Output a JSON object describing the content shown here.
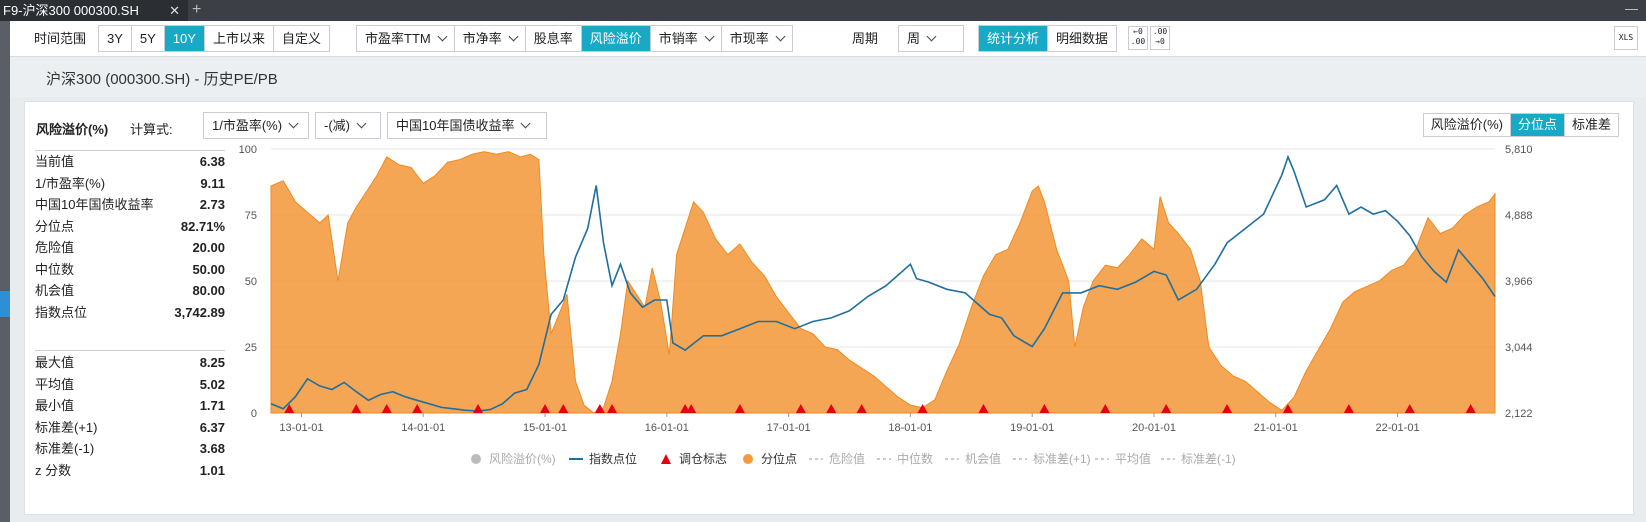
{
  "window": {
    "tab_title": "F9-沪深300 000300.SH",
    "close": "✕",
    "new_tab": "+",
    "minimize": "—"
  },
  "toolbar": {
    "time_label": "时间范围",
    "time_ranges": [
      "3Y",
      "5Y",
      "10Y",
      "上市以来",
      "自定义"
    ],
    "metrics": [
      "市盈率TTM",
      "市净率",
      "股息率",
      "风险溢价",
      "市销率",
      "市现率"
    ],
    "period_label": "周期",
    "period_value": "周",
    "views": [
      "统计分析",
      "明细数据"
    ],
    "decimal_icon_a": "←0\n.00",
    "decimal_icon_b": ".00\n→0",
    "export_icon": "XLS"
  },
  "page_title": "沪深300 (000300.SH) - 历史PE/PB",
  "panel": {
    "title": "风险溢价(%)",
    "formula_label": "计算式:",
    "formula": [
      "1/市盈率(%)",
      "-(减)",
      "中国10年国债收益率"
    ],
    "modes": [
      "风险溢价(%)",
      "分位点",
      "标准差"
    ]
  },
  "stats_top": [
    {
      "label": "当前值",
      "value": "6.38"
    },
    {
      "label": "1/市盈率(%)",
      "value": "9.11"
    },
    {
      "label": "中国10年国债收益率",
      "value": "2.73"
    },
    {
      "label": "分位点",
      "value": "82.71%"
    },
    {
      "label": "危险值",
      "value": "20.00"
    },
    {
      "label": "中位数",
      "value": "50.00"
    },
    {
      "label": "机会值",
      "value": "80.00"
    },
    {
      "label": "指数点位",
      "value": "3,742.89"
    }
  ],
  "stats_bottom": [
    {
      "label": "最大值",
      "value": "8.25"
    },
    {
      "label": "平均值",
      "value": "5.02"
    },
    {
      "label": "最小值",
      "value": "1.71"
    },
    {
      "label": "标准差(+1)",
      "value": "6.37"
    },
    {
      "label": "标准差(-1)",
      "value": "3.68"
    },
    {
      "label": "z 分数",
      "value": "1.01"
    }
  ],
  "chart_data": {
    "type": "area",
    "x_tick_labels": [
      "13-01-01",
      "14-01-01",
      "15-01-01",
      "16-01-01",
      "17-01-01",
      "18-01-01",
      "19-01-01",
      "20-01-01",
      "21-01-01",
      "22-01-01"
    ],
    "y_left_ticks": [
      "0",
      "25",
      "50",
      "75",
      "100"
    ],
    "y_right_ticks": [
      "2,122",
      "3,044",
      "3,966",
      "4,888",
      "5,810"
    ],
    "ylim_left": [
      0,
      100
    ],
    "ylim_right": [
      2122,
      5810
    ],
    "x_range": [
      2012.75,
      2022.8
    ],
    "grid": true,
    "legend_position": "bottom",
    "legend": [
      {
        "name": "风险溢价(%)",
        "color": "#bbbbbb",
        "style": "dot-disabled"
      },
      {
        "name": "指数点位",
        "color": "#1f6f9f",
        "style": "line"
      },
      {
        "name": "调仓标志",
        "color": "#e60012",
        "style": "triangle"
      },
      {
        "name": "分位点",
        "color": "#f39a3c",
        "style": "dot"
      },
      {
        "name": "危险值",
        "color": "#bbbbbb",
        "style": "dash-disabled"
      },
      {
        "name": "中位数",
        "color": "#bbbbbb",
        "style": "dash-disabled"
      },
      {
        "name": "机会值",
        "color": "#bbbbbb",
        "style": "dash-disabled"
      },
      {
        "name": "标准差(+1)",
        "color": "#bbbbbb",
        "style": "dash-disabled"
      },
      {
        "name": "平均值",
        "color": "#bbbbbb",
        "style": "dash-disabled"
      },
      {
        "name": "标准差(-1)",
        "color": "#bbbbbb",
        "style": "dash-disabled"
      }
    ],
    "series": [
      {
        "name": "分位点",
        "axis": "left",
        "color": "#f39a3c",
        "points": [
          [
            2012.75,
            86
          ],
          [
            2012.85,
            88
          ],
          [
            2012.95,
            80
          ],
          [
            2013.05,
            76
          ],
          [
            2013.15,
            72
          ],
          [
            2013.22,
            75
          ],
          [
            2013.3,
            50
          ],
          [
            2013.38,
            72
          ],
          [
            2013.45,
            78
          ],
          [
            2013.55,
            85
          ],
          [
            2013.62,
            90
          ],
          [
            2013.7,
            97
          ],
          [
            2013.8,
            94
          ],
          [
            2013.9,
            93
          ],
          [
            2014.0,
            87
          ],
          [
            2014.1,
            90
          ],
          [
            2014.2,
            95
          ],
          [
            2014.3,
            96
          ],
          [
            2014.4,
            98
          ],
          [
            2014.5,
            99
          ],
          [
            2014.6,
            98
          ],
          [
            2014.7,
            99
          ],
          [
            2014.8,
            97
          ],
          [
            2014.88,
            98
          ],
          [
            2014.95,
            96
          ],
          [
            2014.99,
            60
          ],
          [
            2015.05,
            30
          ],
          [
            2015.12,
            38
          ],
          [
            2015.18,
            45
          ],
          [
            2015.25,
            12
          ],
          [
            2015.32,
            3
          ],
          [
            2015.4,
            0
          ],
          [
            2015.48,
            2
          ],
          [
            2015.55,
            12
          ],
          [
            2015.62,
            30
          ],
          [
            2015.68,
            50
          ],
          [
            2015.75,
            45
          ],
          [
            2015.82,
            40
          ],
          [
            2015.88,
            55
          ],
          [
            2015.95,
            42
          ],
          [
            2016.02,
            22
          ],
          [
            2016.08,
            60
          ],
          [
            2016.15,
            70
          ],
          [
            2016.22,
            80
          ],
          [
            2016.3,
            76
          ],
          [
            2016.4,
            66
          ],
          [
            2016.5,
            60
          ],
          [
            2016.6,
            64
          ],
          [
            2016.7,
            57
          ],
          [
            2016.8,
            52
          ],
          [
            2016.9,
            44
          ],
          [
            2017.0,
            38
          ],
          [
            2017.1,
            32
          ],
          [
            2017.2,
            30
          ],
          [
            2017.3,
            25
          ],
          [
            2017.4,
            24
          ],
          [
            2017.5,
            20
          ],
          [
            2017.6,
            17
          ],
          [
            2017.7,
            14
          ],
          [
            2017.8,
            10
          ],
          [
            2017.9,
            6
          ],
          [
            2018.0,
            3
          ],
          [
            2018.1,
            2
          ],
          [
            2018.2,
            5
          ],
          [
            2018.3,
            16
          ],
          [
            2018.4,
            26
          ],
          [
            2018.5,
            40
          ],
          [
            2018.6,
            52
          ],
          [
            2018.7,
            60
          ],
          [
            2018.8,
            62
          ],
          [
            2018.9,
            72
          ],
          [
            2019.0,
            84
          ],
          [
            2019.05,
            86
          ],
          [
            2019.1,
            80
          ],
          [
            2019.2,
            62
          ],
          [
            2019.3,
            50
          ],
          [
            2019.35,
            25
          ],
          [
            2019.42,
            40
          ],
          [
            2019.5,
            50
          ],
          [
            2019.6,
            56
          ],
          [
            2019.7,
            55
          ],
          [
            2019.8,
            60
          ],
          [
            2019.9,
            66
          ],
          [
            2020.0,
            62
          ],
          [
            2020.05,
            82
          ],
          [
            2020.12,
            72
          ],
          [
            2020.2,
            68
          ],
          [
            2020.3,
            62
          ],
          [
            2020.38,
            50
          ],
          [
            2020.45,
            25
          ],
          [
            2020.55,
            18
          ],
          [
            2020.65,
            14
          ],
          [
            2020.75,
            12
          ],
          [
            2020.85,
            8
          ],
          [
            2020.95,
            4
          ],
          [
            2021.05,
            1
          ],
          [
            2021.15,
            6
          ],
          [
            2021.25,
            16
          ],
          [
            2021.35,
            24
          ],
          [
            2021.45,
            32
          ],
          [
            2021.55,
            42
          ],
          [
            2021.65,
            46
          ],
          [
            2021.75,
            48
          ],
          [
            2021.85,
            50
          ],
          [
            2021.95,
            54
          ],
          [
            2022.05,
            56
          ],
          [
            2022.15,
            62
          ],
          [
            2022.25,
            74
          ],
          [
            2022.35,
            68
          ],
          [
            2022.45,
            70
          ],
          [
            2022.55,
            75
          ],
          [
            2022.65,
            78
          ],
          [
            2022.75,
            80
          ],
          [
            2022.8,
            83
          ]
        ]
      },
      {
        "name": "指数点位",
        "axis": "right",
        "color": "#1f6f9f",
        "points": [
          [
            2012.75,
            2250
          ],
          [
            2012.85,
            2180
          ],
          [
            2012.95,
            2350
          ],
          [
            2013.05,
            2600
          ],
          [
            2013.15,
            2500
          ],
          [
            2013.25,
            2450
          ],
          [
            2013.35,
            2550
          ],
          [
            2013.45,
            2420
          ],
          [
            2013.55,
            2300
          ],
          [
            2013.65,
            2380
          ],
          [
            2013.75,
            2420
          ],
          [
            2013.85,
            2350
          ],
          [
            2013.95,
            2300
          ],
          [
            2014.05,
            2250
          ],
          [
            2014.15,
            2200
          ],
          [
            2014.25,
            2180
          ],
          [
            2014.35,
            2160
          ],
          [
            2014.45,
            2150
          ],
          [
            2014.55,
            2170
          ],
          [
            2014.65,
            2250
          ],
          [
            2014.75,
            2400
          ],
          [
            2014.85,
            2450
          ],
          [
            2014.95,
            2800
          ],
          [
            2015.05,
            3500
          ],
          [
            2015.15,
            3700
          ],
          [
            2015.25,
            4300
          ],
          [
            2015.35,
            4700
          ],
          [
            2015.42,
            5300
          ],
          [
            2015.48,
            4500
          ],
          [
            2015.55,
            3900
          ],
          [
            2015.62,
            4200
          ],
          [
            2015.7,
            3800
          ],
          [
            2015.8,
            3600
          ],
          [
            2015.9,
            3700
          ],
          [
            2016.0,
            3700
          ],
          [
            2016.05,
            3100
          ],
          [
            2016.15,
            3000
          ],
          [
            2016.3,
            3200
          ],
          [
            2016.45,
            3200
          ],
          [
            2016.6,
            3300
          ],
          [
            2016.75,
            3400
          ],
          [
            2016.9,
            3400
          ],
          [
            2017.05,
            3300
          ],
          [
            2017.2,
            3400
          ],
          [
            2017.35,
            3450
          ],
          [
            2017.5,
            3550
          ],
          [
            2017.65,
            3750
          ],
          [
            2017.8,
            3900
          ],
          [
            2017.9,
            4050
          ],
          [
            2018.0,
            4200
          ],
          [
            2018.05,
            4000
          ],
          [
            2018.15,
            3950
          ],
          [
            2018.3,
            3850
          ],
          [
            2018.45,
            3800
          ],
          [
            2018.55,
            3650
          ],
          [
            2018.65,
            3500
          ],
          [
            2018.75,
            3450
          ],
          [
            2018.85,
            3200
          ],
          [
            2018.95,
            3100
          ],
          [
            2019.0,
            3050
          ],
          [
            2019.1,
            3300
          ],
          [
            2019.25,
            3800
          ],
          [
            2019.4,
            3800
          ],
          [
            2019.55,
            3900
          ],
          [
            2019.7,
            3850
          ],
          [
            2019.85,
            3950
          ],
          [
            2020.0,
            4100
          ],
          [
            2020.1,
            4050
          ],
          [
            2020.2,
            3700
          ],
          [
            2020.35,
            3850
          ],
          [
            2020.5,
            4200
          ],
          [
            2020.6,
            4500
          ],
          [
            2020.75,
            4700
          ],
          [
            2020.9,
            4900
          ],
          [
            2021.05,
            5450
          ],
          [
            2021.1,
            5700
          ],
          [
            2021.15,
            5500
          ],
          [
            2021.25,
            5000
          ],
          [
            2021.4,
            5100
          ],
          [
            2021.5,
            5300
          ],
          [
            2021.6,
            4900
          ],
          [
            2021.7,
            5000
          ],
          [
            2021.8,
            4900
          ],
          [
            2021.9,
            4950
          ],
          [
            2022.0,
            4800
          ],
          [
            2022.1,
            4600
          ],
          [
            2022.2,
            4300
          ],
          [
            2022.3,
            4100
          ],
          [
            2022.4,
            3950
          ],
          [
            2022.5,
            4400
          ],
          [
            2022.6,
            4200
          ],
          [
            2022.7,
            4000
          ],
          [
            2022.8,
            3750
          ]
        ]
      }
    ],
    "rebalance_markers": [
      2012.9,
      2013.45,
      2013.7,
      2013.95,
      2014.45,
      2015.0,
      2015.15,
      2015.45,
      2015.55,
      2016.15,
      2016.2,
      2016.6,
      2017.1,
      2017.35,
      2017.6,
      2018.1,
      2018.6,
      2019.1,
      2019.6,
      2020.1,
      2020.6,
      2021.1,
      2021.6,
      2022.1,
      2022.6
    ]
  }
}
